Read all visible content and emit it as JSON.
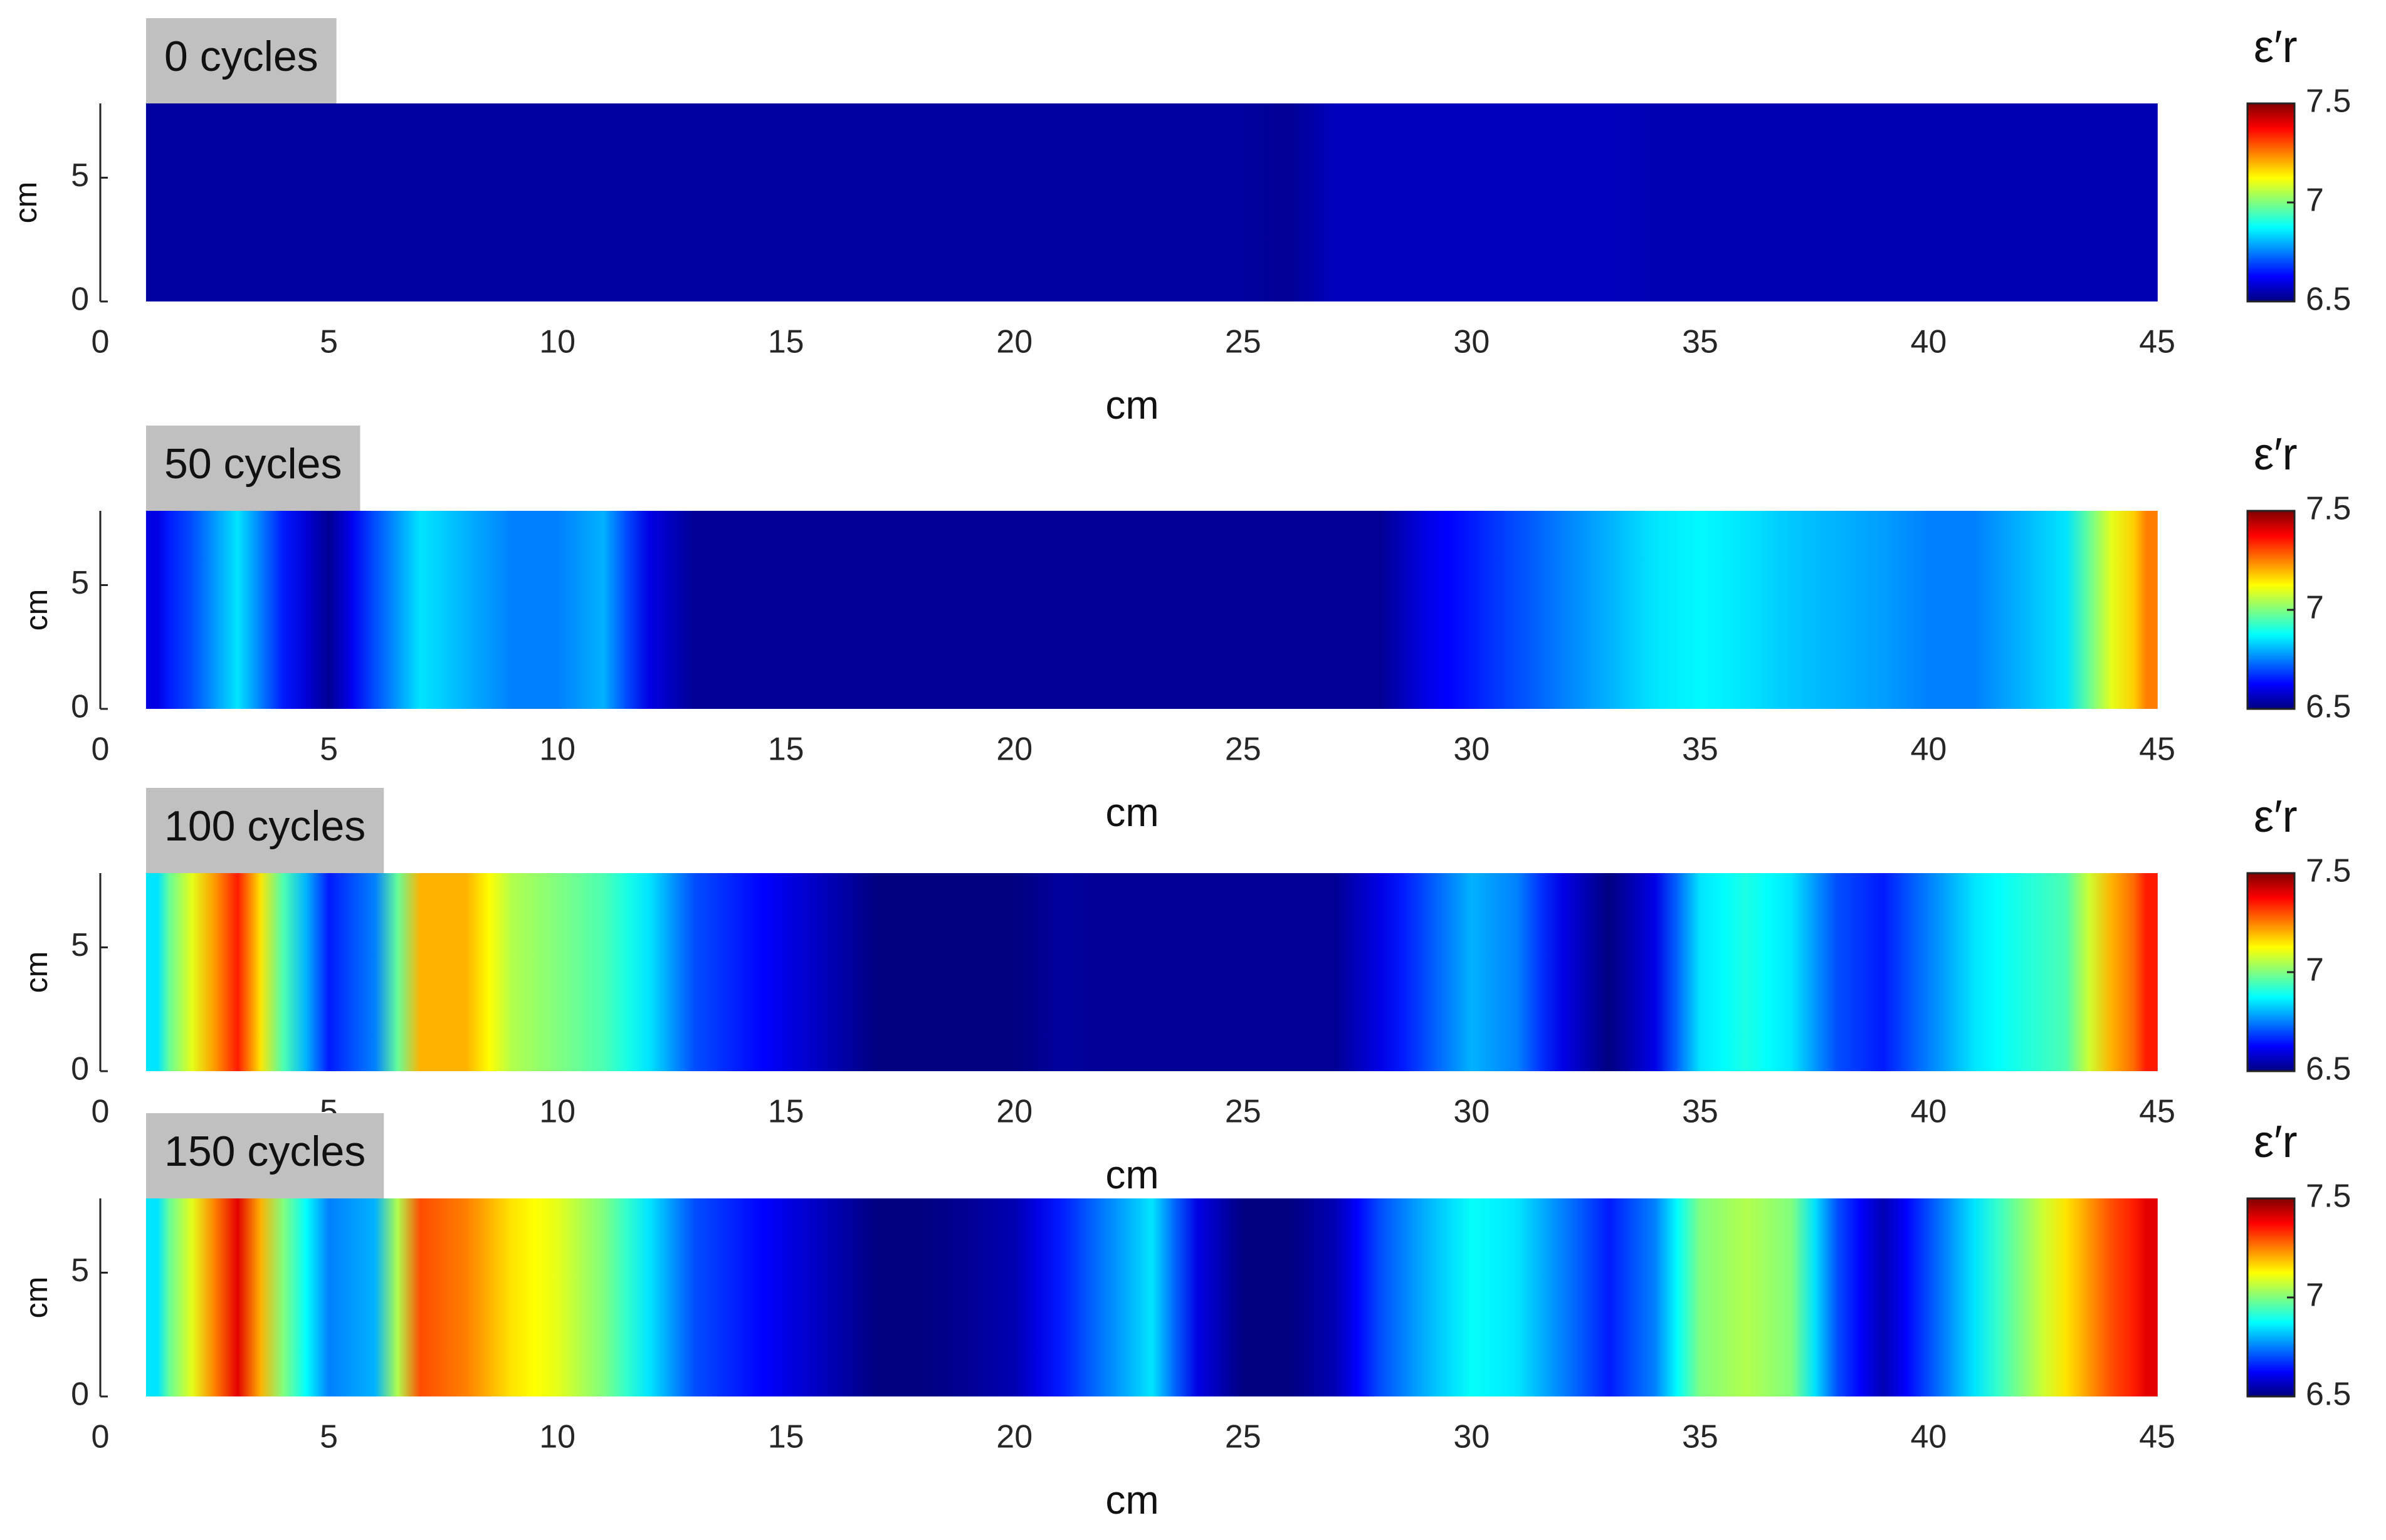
{
  "chart_data": [
    {
      "type": "heatmap",
      "title": "0 cycles",
      "xlabel": "cm",
      "ylabel": "cm",
      "xlim": [
        0,
        45
      ],
      "xticks": [
        0,
        5,
        10,
        15,
        20,
        25,
        30,
        35,
        40,
        45
      ],
      "ylim": [
        0,
        8
      ],
      "yticks": [
        0,
        5
      ],
      "colormap": "jet",
      "clim": [
        6.5,
        7.5
      ],
      "colorbar_ticks": [
        6.5,
        7,
        7.5
      ],
      "colorbar_label": "ε′r",
      "x": [
        1,
        2,
        3,
        4,
        5,
        6,
        7,
        8,
        9,
        10,
        11,
        12,
        13,
        14,
        15,
        16,
        17,
        18,
        19,
        20,
        21,
        22,
        23,
        24,
        25,
        26,
        27,
        28,
        29,
        30,
        31,
        32,
        33,
        34,
        35,
        36,
        37,
        38,
        39,
        40,
        41,
        42,
        43,
        44,
        45
      ],
      "values": [
        6.53,
        6.53,
        6.53,
        6.53,
        6.53,
        6.53,
        6.53,
        6.53,
        6.53,
        6.53,
        6.53,
        6.53,
        6.53,
        6.53,
        6.53,
        6.53,
        6.53,
        6.53,
        6.53,
        6.53,
        6.53,
        6.53,
        6.53,
        6.53,
        6.53,
        6.52,
        6.56,
        6.56,
        6.56,
        6.56,
        6.56,
        6.56,
        6.56,
        6.55,
        6.55,
        6.55,
        6.55,
        6.55,
        6.55,
        6.55,
        6.55,
        6.55,
        6.55,
        6.55,
        6.55
      ]
    },
    {
      "type": "heatmap",
      "title": "50 cycles",
      "xlabel": "cm",
      "ylabel": "cm",
      "xlim": [
        0,
        45
      ],
      "xticks": [
        0,
        5,
        10,
        15,
        20,
        25,
        30,
        35,
        40,
        45
      ],
      "ylim": [
        0,
        8
      ],
      "yticks": [
        0,
        5
      ],
      "colormap": "jet",
      "clim": [
        6.5,
        7.5
      ],
      "colorbar_ticks": [
        6.5,
        7,
        7.5
      ],
      "colorbar_label": "ε′r",
      "x": [
        1,
        2,
        3,
        4,
        5,
        6,
        7,
        8,
        9,
        10,
        11,
        12,
        13,
        14,
        15,
        16,
        17,
        18,
        19,
        20,
        21,
        22,
        23,
        24,
        25,
        26,
        27,
        28,
        29,
        30,
        31,
        32,
        33,
        34,
        35,
        36,
        37,
        38,
        39,
        40,
        41,
        42,
        43,
        44,
        45
      ],
      "values": [
        6.6,
        6.7,
        6.85,
        6.65,
        6.52,
        6.7,
        6.85,
        6.8,
        6.75,
        6.75,
        6.8,
        6.6,
        6.52,
        6.52,
        6.52,
        6.52,
        6.52,
        6.52,
        6.52,
        6.52,
        6.52,
        6.52,
        6.52,
        6.52,
        6.52,
        6.52,
        6.52,
        6.52,
        6.6,
        6.65,
        6.7,
        6.75,
        6.8,
        6.85,
        6.87,
        6.85,
        6.82,
        6.8,
        6.78,
        6.75,
        6.75,
        6.8,
        6.85,
        7.1,
        7.25
      ]
    },
    {
      "type": "heatmap",
      "title": "100 cycles",
      "xlabel": "cm",
      "ylabel": "cm",
      "xlim": [
        0,
        45
      ],
      "xticks": [
        0,
        5,
        10,
        15,
        20,
        25,
        30,
        35,
        40,
        45
      ],
      "ylim": [
        0,
        8
      ],
      "yticks": [
        0,
        5
      ],
      "colormap": "jet",
      "clim": [
        6.5,
        7.5
      ],
      "colorbar_ticks": [
        6.5,
        7,
        7.5
      ],
      "colorbar_label": "ε′r",
      "x": [
        1,
        2,
        3,
        4,
        5,
        6,
        7,
        8,
        9,
        10,
        11,
        12,
        13,
        14,
        15,
        16,
        17,
        18,
        19,
        20,
        21,
        22,
        23,
        24,
        25,
        26,
        27,
        28,
        29,
        30,
        31,
        32,
        33,
        34,
        35,
        36,
        37,
        38,
        39,
        40,
        41,
        42,
        43,
        44,
        45
      ],
      "values": [
        6.85,
        7.1,
        7.35,
        6.95,
        6.65,
        6.75,
        7.2,
        7.2,
        7.05,
        7.0,
        6.95,
        6.85,
        6.7,
        6.65,
        6.6,
        6.55,
        6.5,
        6.5,
        6.5,
        6.5,
        6.53,
        6.52,
        6.52,
        6.52,
        6.52,
        6.52,
        6.52,
        6.6,
        6.7,
        6.8,
        6.75,
        6.6,
        6.5,
        6.6,
        6.85,
        6.9,
        6.85,
        6.7,
        6.65,
        6.75,
        6.85,
        6.9,
        6.95,
        7.2,
        7.35
      ]
    },
    {
      "type": "heatmap",
      "title": "150 cycles",
      "xlabel": "cm",
      "ylabel": "cm",
      "xlim": [
        0,
        45
      ],
      "xticks": [
        0,
        5,
        10,
        15,
        20,
        25,
        30,
        35,
        40,
        45
      ],
      "ylim": [
        0,
        8
      ],
      "yticks": [
        0,
        5
      ],
      "colormap": "jet",
      "clim": [
        6.5,
        7.5
      ],
      "colorbar_ticks": [
        6.5,
        7,
        7.5
      ],
      "colorbar_label": "ε′r",
      "x": [
        1,
        2,
        3,
        4,
        5,
        6,
        7,
        8,
        9,
        10,
        11,
        12,
        13,
        14,
        15,
        16,
        17,
        18,
        19,
        20,
        21,
        22,
        23,
        24,
        25,
        26,
        27,
        28,
        29,
        30,
        31,
        32,
        33,
        34,
        35,
        36,
        37,
        38,
        39,
        40,
        41,
        42,
        43,
        44,
        45
      ],
      "values": [
        6.85,
        7.1,
        7.4,
        7.0,
        6.75,
        6.8,
        7.3,
        7.25,
        7.15,
        7.1,
        7.0,
        6.85,
        6.7,
        6.65,
        6.6,
        6.55,
        6.5,
        6.5,
        6.52,
        6.55,
        6.65,
        6.75,
        6.85,
        6.6,
        6.5,
        6.5,
        6.55,
        6.7,
        6.8,
        6.88,
        6.85,
        6.75,
        6.65,
        6.75,
        7.0,
        7.05,
        7.0,
        6.7,
        6.55,
        6.7,
        6.85,
        7.0,
        7.15,
        7.3,
        7.4
      ]
    }
  ]
}
